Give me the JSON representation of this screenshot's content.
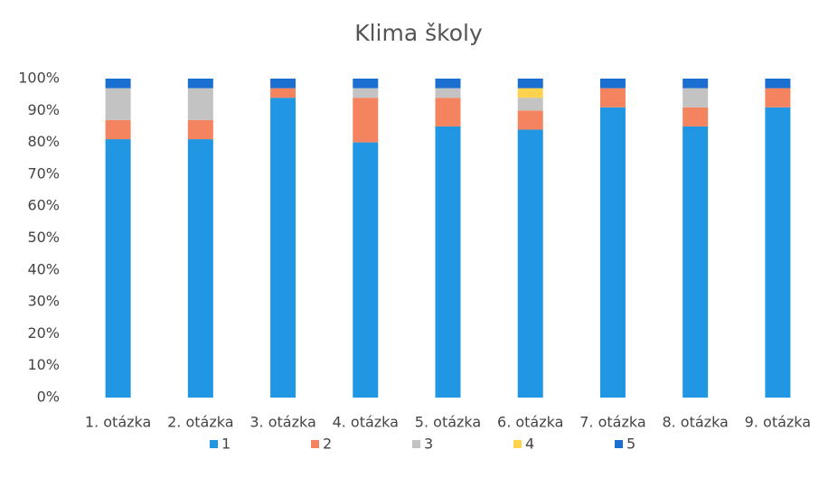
{
  "chart_data": {
    "type": "stacked_bar",
    "title": "Klima školy",
    "categories": [
      "1. otázka",
      "2. otázka",
      "3. otázka",
      "4. otázka",
      "5. otázka",
      "6. otázka",
      "7. otázka",
      "8. otázka",
      "9. otázka"
    ],
    "series": [
      {
        "name": "1",
        "color": "#2196e3",
        "values": [
          81,
          81,
          94,
          80,
          85,
          84,
          91,
          85,
          91
        ]
      },
      {
        "name": "2",
        "color": "#f4845f",
        "values": [
          6,
          6,
          3,
          14,
          9,
          6,
          6,
          6,
          6
        ]
      },
      {
        "name": "3",
        "color": "#c3c3c3",
        "values": [
          10,
          10,
          0,
          3,
          3,
          4,
          0,
          6,
          0
        ]
      },
      {
        "name": "4",
        "color": "#ffd34d",
        "values": [
          0,
          0,
          0,
          0,
          0,
          3,
          0,
          0,
          0
        ]
      },
      {
        "name": "5",
        "color": "#1b6fd0",
        "values": [
          3,
          3,
          3,
          3,
          3,
          3,
          3,
          3,
          3
        ]
      }
    ],
    "ylim": [
      0,
      100
    ],
    "yticks": [
      {
        "value": 0,
        "label": "0%"
      },
      {
        "value": 10,
        "label": "10%"
      },
      {
        "value": 20,
        "label": "20%"
      },
      {
        "value": 30,
        "label": "30%"
      },
      {
        "value": 40,
        "label": "40%"
      },
      {
        "value": 50,
        "label": "50%"
      },
      {
        "value": 60,
        "label": "60%"
      },
      {
        "value": 70,
        "label": "70%"
      },
      {
        "value": 80,
        "label": "80%"
      },
      {
        "value": 90,
        "label": "90%"
      },
      {
        "value": 100,
        "label": "100%"
      }
    ],
    "legend": "bottom"
  }
}
